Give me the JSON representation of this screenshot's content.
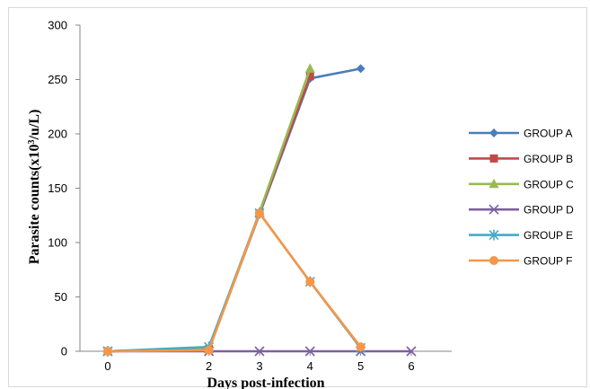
{
  "chart_data": {
    "type": "line",
    "xlabel": "Days post-infection",
    "ylabel_main": "Parasite counts(x10",
    "ylabel_sup": "3",
    "ylabel_tail": "/u/L)",
    "xlim": [
      -0.55,
      6.8
    ],
    "ylim": [
      0,
      300
    ],
    "x_ticks": [
      0,
      2,
      3,
      4,
      5,
      6
    ],
    "y_ticks": [
      0,
      50,
      100,
      150,
      200,
      250,
      300
    ],
    "grid": false,
    "legend_position": "right",
    "series": [
      {
        "name": "GROUP A",
        "color": "#4a7ebb",
        "marker": "diamond",
        "x": [
          0,
          2,
          3,
          4,
          5
        ],
        "y": [
          0,
          2,
          126,
          251,
          260
        ]
      },
      {
        "name": "GROUP B",
        "color": "#be4b48",
        "marker": "square",
        "x": [
          0,
          2,
          3,
          4
        ],
        "y": [
          0,
          2,
          127,
          253
        ]
      },
      {
        "name": "GROUP C",
        "color": "#98b954",
        "marker": "triangle",
        "x": [
          0,
          2,
          3,
          4
        ],
        "y": [
          0,
          2,
          128,
          260
        ]
      },
      {
        "name": "GROUP D",
        "color": "#7d60a0",
        "marker": "x",
        "x": [
          0,
          2,
          3,
          4,
          5,
          6
        ],
        "y": [
          0,
          0,
          0,
          0,
          0,
          0
        ]
      },
      {
        "name": "GROUP E",
        "color": "#46aac5",
        "marker": "star",
        "x": [
          0,
          2,
          3,
          4,
          5
        ],
        "y": [
          0,
          4,
          127,
          64,
          3
        ]
      },
      {
        "name": "GROUP F",
        "color": "#f79646",
        "marker": "circle",
        "x": [
          0,
          2,
          3,
          4,
          5
        ],
        "y": [
          0,
          1,
          127,
          64,
          4
        ]
      }
    ]
  }
}
